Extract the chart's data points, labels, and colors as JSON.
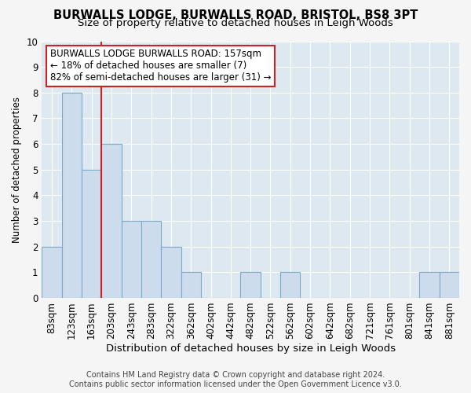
{
  "title_line1": "BURWALLS LODGE, BURWALLS ROAD, BRISTOL, BS8 3PT",
  "title_line2": "Size of property relative to detached houses in Leigh Woods",
  "xlabel": "Distribution of detached houses by size in Leigh Woods",
  "ylabel": "Number of detached properties",
  "footer_line1": "Contains HM Land Registry data © Crown copyright and database right 2024.",
  "footer_line2": "Contains public sector information licensed under the Open Government Licence v3.0.",
  "categories": [
    "83sqm",
    "123sqm",
    "163sqm",
    "203sqm",
    "243sqm",
    "283sqm",
    "322sqm",
    "362sqm",
    "402sqm",
    "442sqm",
    "482sqm",
    "522sqm",
    "562sqm",
    "602sqm",
    "642sqm",
    "682sqm",
    "721sqm",
    "761sqm",
    "801sqm",
    "841sqm",
    "881sqm"
  ],
  "values": [
    2,
    8,
    5,
    6,
    3,
    3,
    2,
    1,
    0,
    0,
    1,
    0,
    1,
    0,
    0,
    0,
    0,
    0,
    0,
    1,
    1
  ],
  "bar_color": "#ccdcec",
  "bar_edge_color": "#7aaac8",
  "bar_linewidth": 0.8,
  "subject_line_color": "#cc2222",
  "annotation_text": "BURWALLS LODGE BURWALLS ROAD: 157sqm\n← 18% of detached houses are smaller (7)\n82% of semi-detached houses are larger (31) →",
  "annotation_box_color": "#ffffff",
  "annotation_box_edge_color": "#cc2222",
  "ylim": [
    0,
    10
  ],
  "yticks": [
    0,
    1,
    2,
    3,
    4,
    5,
    6,
    7,
    8,
    9,
    10
  ],
  "chart_bg_color": "#dde8f0",
  "fig_bg_color": "#f5f5f5",
  "grid_color": "#ffffff",
  "title1_fontsize": 10.5,
  "title2_fontsize": 9.5,
  "xlabel_fontsize": 9.5,
  "ylabel_fontsize": 8.5,
  "tick_fontsize": 7.5,
  "annotation_fontsize": 8.5,
  "footer_fontsize": 7
}
